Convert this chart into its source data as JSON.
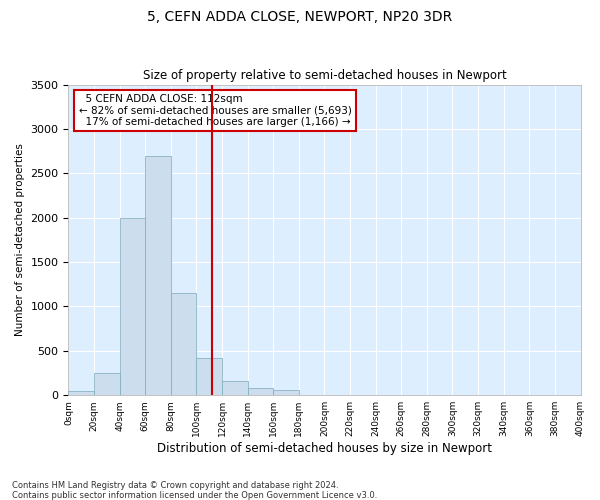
{
  "title1": "5, CEFN ADDA CLOSE, NEWPORT, NP20 3DR",
  "title2": "Size of property relative to semi-detached houses in Newport",
  "xlabel": "Distribution of semi-detached houses by size in Newport",
  "ylabel": "Number of semi-detached properties",
  "footnote1": "Contains HM Land Registry data © Crown copyright and database right 2024.",
  "footnote2": "Contains public sector information licensed under the Open Government Licence v3.0.",
  "annotation_line1": "  5 CEFN ADDA CLOSE: 112sqm  ",
  "annotation_line2": "← 82% of semi-detached houses are smaller (5,693)",
  "annotation_line3": "  17% of semi-detached houses are larger (1,166) →",
  "property_size": 112,
  "bar_color": "#ccdded",
  "bar_edge_color": "#7aaabb",
  "vline_color": "#cc0000",
  "annotation_box_facecolor": "white",
  "annotation_box_edgecolor": "#cc0000",
  "background_color": "#ddeeff",
  "bins": [
    0,
    20,
    40,
    60,
    80,
    100,
    120,
    140,
    160,
    180,
    200,
    220,
    240,
    260,
    280,
    300,
    320,
    340,
    360,
    380,
    400
  ],
  "counts": [
    50,
    250,
    2000,
    2700,
    1150,
    420,
    160,
    80,
    60,
    0,
    0,
    0,
    0,
    0,
    0,
    0,
    0,
    0,
    0,
    0
  ],
  "ylim": [
    0,
    3500
  ],
  "yticks": [
    0,
    500,
    1000,
    1500,
    2000,
    2500,
    3000,
    3500
  ]
}
